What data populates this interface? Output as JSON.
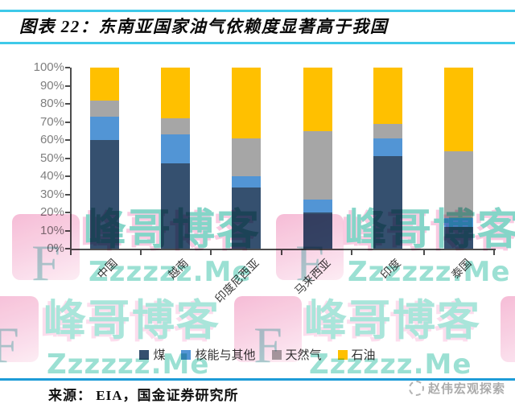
{
  "title": "图表 22：东南亚国家油气依赖度显著高于我国",
  "accent": {
    "title_border": "#3EC9E9",
    "separator": "#1D9BD7",
    "axis": "#4d4d4d"
  },
  "chart_data": {
    "type": "bar",
    "stacked": true,
    "units": "percent",
    "categories": [
      "中国",
      "越南",
      "印度尼西亚",
      "马来西亚",
      "印度",
      "泰国"
    ],
    "series": [
      {
        "name": "煤",
        "color": "#35506F",
        "values": [
          60,
          47,
          34,
          20,
          51,
          12
        ]
      },
      {
        "name": "核能与其他",
        "color": "#5295D5",
        "values": [
          13,
          16,
          6,
          7,
          10,
          5
        ]
      },
      {
        "name": "天然气",
        "color": "#A6A6A6",
        "values": [
          9,
          9,
          21,
          38,
          8,
          37
        ]
      },
      {
        "name": "石油",
        "color": "#FFC000",
        "values": [
          18,
          28,
          39,
          35,
          31,
          46
        ]
      }
    ],
    "title": "",
    "xlabel": "",
    "ylabel": "",
    "ylim": [
      0,
      100
    ],
    "ytick_step": 10,
    "ytick_suffix": "%",
    "grid": false,
    "legend_position": "bottom"
  },
  "source_line": "来源：  EIA，国金证券研究所",
  "watermark": {
    "brand": "峰哥博客",
    "url": "Zzzzzz.Me",
    "letter": "F"
  },
  "footer_badge": {
    "text": "赵伟宏观探索"
  }
}
